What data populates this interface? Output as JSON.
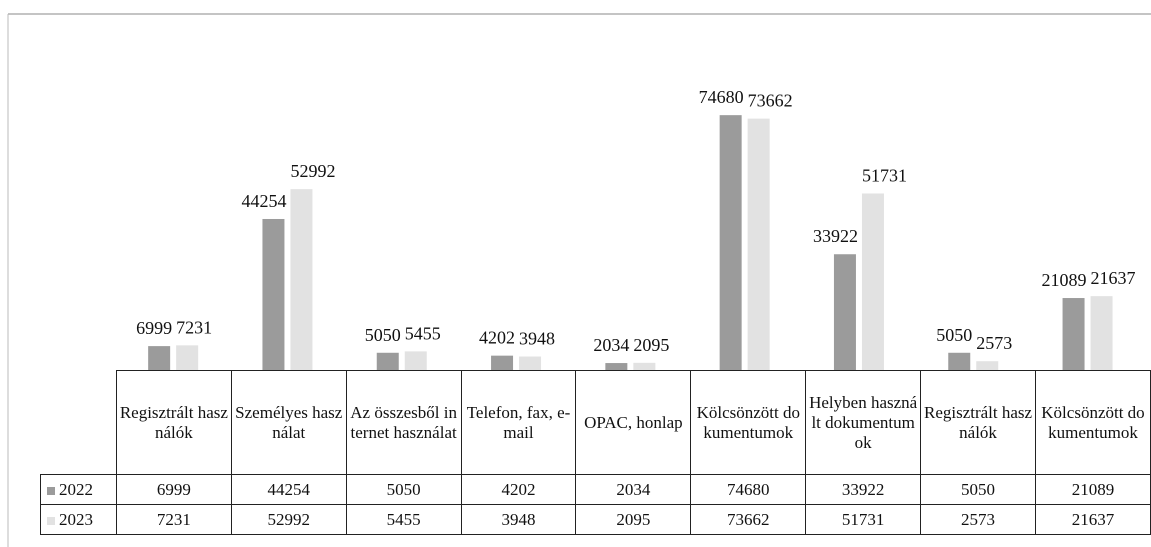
{
  "chart_data": {
    "type": "bar",
    "categories": [
      "Regisztrált használók",
      "Személyes használat",
      "Az összesből internet használat",
      "Telefon, fax, e-mail",
      "OPAC, honlap",
      "Kölcsönzött dokumentumok",
      "Helyben használt dokumentumok",
      "Regisztrált használók",
      "Kölcsönzött dokumentumok"
    ],
    "series": [
      {
        "name": "2022",
        "color": "#9b9b9b",
        "values": [
          6999,
          44254,
          5050,
          4202,
          2034,
          74680,
          33922,
          5050,
          21089
        ]
      },
      {
        "name": "2023",
        "color": "#e2e2e2",
        "values": [
          7231,
          52992,
          5455,
          3948,
          2095,
          73662,
          51731,
          2573,
          21637
        ]
      }
    ],
    "ylim": [
      0,
      80000
    ]
  }
}
